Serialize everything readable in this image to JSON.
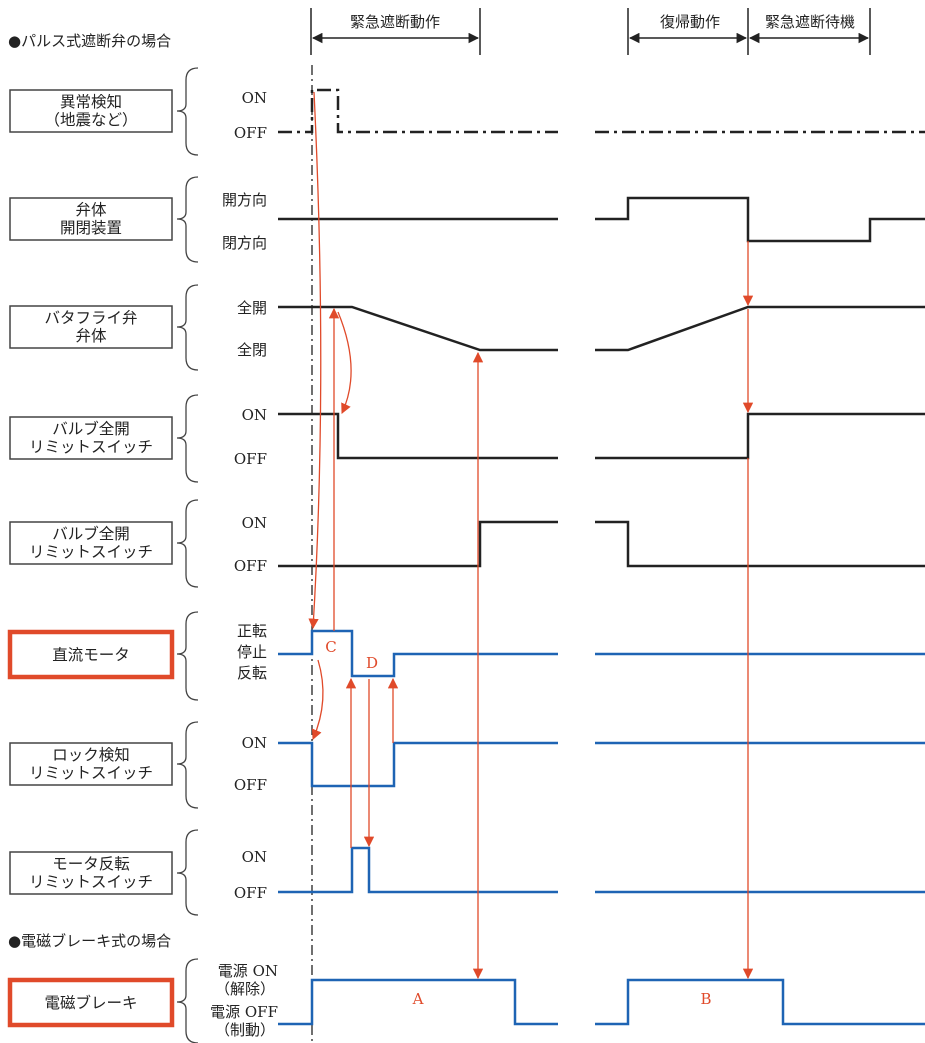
{
  "sections": {
    "pulse": "●パルス式遮断弁の場合",
    "brake": "●電磁ブレーキ式の場合"
  },
  "phases": {
    "emergency": "緊急遮断動作",
    "reset": "復帰動作",
    "standby": "緊急遮断待機"
  },
  "rows": [
    {
      "id": "anomaly",
      "box": [
        "異常検知",
        "（地震など）"
      ],
      "levels": [
        "ON",
        "OFF"
      ],
      "highlight": false
    },
    {
      "id": "actuator",
      "box": [
        "弁体",
        "開閉装置"
      ],
      "levels": [
        "開方向",
        "閉方向"
      ],
      "highlight": false
    },
    {
      "id": "butterfly",
      "box": [
        "バタフライ弁",
        "弁体"
      ],
      "levels": [
        "全開",
        "全閉"
      ],
      "highlight": false
    },
    {
      "id": "ls-open",
      "box": [
        "バルブ全開",
        "リミットスイッチ"
      ],
      "levels": [
        "ON",
        "OFF"
      ],
      "highlight": false
    },
    {
      "id": "ls-close",
      "box": [
        "バルブ全開",
        "リミットスイッチ"
      ],
      "levels": [
        "ON",
        "OFF"
      ],
      "highlight": false
    },
    {
      "id": "dc-motor",
      "box": [
        "直流モータ"
      ],
      "levels": [
        "正転",
        "停止",
        "反転"
      ],
      "highlight": true
    },
    {
      "id": "lock-ls",
      "box": [
        "ロック検知",
        "リミットスイッチ"
      ],
      "levels": [
        "ON",
        "OFF"
      ],
      "highlight": false
    },
    {
      "id": "motor-rev-ls",
      "box": [
        "モータ反転",
        "リミットスイッチ"
      ],
      "levels": [
        "ON",
        "OFF"
      ],
      "highlight": false
    },
    {
      "id": "brake",
      "box": [
        "電磁ブレーキ"
      ],
      "levels": [
        "電源 ON",
        "（解除）",
        "電源 OFF",
        "（制動）"
      ],
      "highlight": true
    }
  ],
  "markers": [
    "A",
    "B",
    "C",
    "D"
  ],
  "colors": {
    "black_signal": "#222222",
    "blue_signal": "#1e64b4",
    "accent": "#e04a2a"
  }
}
